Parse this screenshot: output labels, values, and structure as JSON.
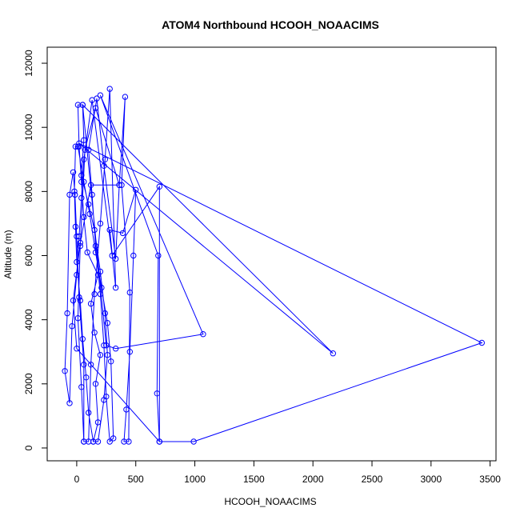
{
  "chart_data": {
    "type": "scatter",
    "title": "ATOM4 Northbound HCOOH_NOAACIMS",
    "xlabel": "HCOOH_NOAACIMS",
    "ylabel": "Altitude (m)",
    "xlim": [
      -250,
      3550
    ],
    "ylim": [
      -400,
      12500
    ],
    "x_ticks": [
      0,
      500,
      1000,
      1500,
      2000,
      2500,
      3000,
      3500
    ],
    "y_ticks": [
      0,
      2000,
      4000,
      6000,
      8000,
      10000,
      12000
    ],
    "grid": false,
    "legend": "none",
    "color": "#0000ff",
    "series": [
      {
        "style": "line+points",
        "points": [
          [
            140,
            200
          ],
          [
            180,
            800
          ],
          [
            160,
            2000
          ],
          [
            200,
            2900
          ],
          [
            150,
            3600
          ],
          [
            120,
            4500
          ],
          [
            180,
            5400
          ],
          [
            90,
            6100
          ],
          [
            60,
            7200
          ],
          [
            40,
            8300
          ],
          [
            20,
            9400
          ],
          [
            10,
            10700
          ],
          [
            50,
            10700
          ],
          [
            60,
            9600
          ],
          [
            40,
            8500
          ],
          [
            100,
            7600
          ],
          [
            150,
            6800
          ],
          [
            200,
            5500
          ],
          [
            240,
            4200
          ],
          [
            260,
            2900
          ],
          [
            230,
            1500
          ],
          [
            180,
            200
          ],
          [
            140,
            200
          ],
          [
            100,
            1100
          ],
          [
            80,
            2200
          ],
          [
            50,
            3400
          ],
          [
            30,
            4600
          ],
          [
            0,
            5800
          ],
          [
            -10,
            6900
          ],
          [
            -20,
            8000
          ],
          [
            -10,
            9400
          ],
          [
            10,
            9400
          ],
          [
            60,
            8300
          ],
          [
            110,
            7300
          ],
          [
            160,
            6100
          ],
          [
            210,
            5000
          ],
          [
            260,
            3900
          ],
          [
            290,
            2700
          ],
          [
            310,
            300
          ],
          [
            280,
            200
          ],
          [
            250,
            1600
          ],
          [
            230,
            3200
          ],
          [
            200,
            4800
          ],
          [
            160,
            6300
          ],
          [
            130,
            7900
          ],
          [
            100,
            9300
          ],
          [
            170,
            10900
          ],
          [
            230,
            8800
          ],
          [
            330,
            5900
          ],
          [
            360,
            8200
          ],
          [
            410,
            10950
          ],
          [
            380,
            8200
          ],
          [
            450,
            4850
          ],
          [
            440,
            200
          ],
          [
            400,
            200
          ],
          [
            420,
            1200
          ],
          [
            450,
            3000
          ],
          [
            480,
            6000
          ],
          [
            500,
            8050
          ],
          [
            390,
            6700
          ],
          [
            280,
            6800
          ],
          [
            330,
            5000
          ],
          [
            280,
            11200
          ],
          [
            240,
            9000
          ],
          [
            200,
            7000
          ],
          [
            150,
            4800
          ],
          [
            120,
            2600
          ],
          [
            100,
            200
          ],
          [
            60,
            200
          ],
          [
            60,
            2600
          ],
          [
            20,
            4700
          ],
          [
            0,
            6600
          ],
          [
            -15,
            7900
          ],
          [
            -30,
            8600
          ],
          [
            -60,
            7900
          ],
          [
            -80,
            4200
          ],
          [
            -100,
            2400
          ],
          [
            -60,
            1400
          ],
          [
            -40,
            3800
          ],
          [
            0,
            5400
          ],
          [
            20,
            6600
          ],
          [
            40,
            7800
          ],
          [
            60,
            9000
          ],
          [
            130,
            10850
          ],
          [
            300,
            6000
          ],
          [
            700,
            8150
          ],
          [
            700,
            200
          ],
          [
            680,
            1700
          ],
          [
            690,
            6000
          ],
          [
            200,
            11000
          ],
          [
            1070,
            3550
          ],
          [
            330,
            3100
          ],
          [
            250,
            3200
          ],
          [
            50,
            10700
          ],
          [
            2170,
            2950
          ],
          [
            20,
            9500
          ],
          [
            3430,
            3280
          ],
          [
            990,
            200
          ],
          [
            700,
            200
          ],
          [
            0,
            3100
          ],
          [
            -30,
            4600
          ],
          [
            30,
            6400
          ],
          [
            120,
            8200
          ],
          [
            360,
            8200
          ],
          [
            160,
            10600
          ],
          [
            70,
            9300
          ],
          [
            30,
            6300
          ],
          [
            10,
            4050
          ],
          [
            40,
            1900
          ],
          [
            60,
            200
          ]
        ]
      }
    ]
  }
}
